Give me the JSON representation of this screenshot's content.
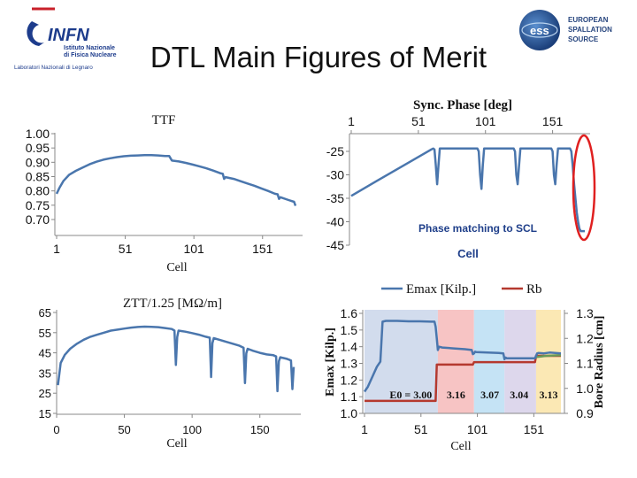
{
  "slide": {
    "title": "DTL Main Figures of Merit",
    "logo_left": {
      "name": "INFN",
      "line1": "Istituto Nazionale",
      "line2": "di Fisica Nucleare",
      "line3": "Laboratori Nazionali di Legnaro"
    },
    "logo_right": {
      "line1": "EUROPEAN",
      "line2": "SPALLATION",
      "line3": "SOURCE"
    }
  },
  "colors": {
    "series_blue": "#4a76ad",
    "series_red": "#b5392f",
    "series_green": "#6a9a57",
    "highlight_red": "#e02020",
    "annotation_blue": "#1f3f8a",
    "band_blue": "#d2dced",
    "band_pink": "#f7c4c4",
    "band_cyan": "#c5e3f5",
    "band_lavender": "#ddd7ec",
    "band_yellow": "#fbe8b4"
  },
  "chart_data": [
    {
      "id": "ttf",
      "type": "line",
      "title": "TTF",
      "xlabel": "Cell",
      "ylabel": "",
      "xlim": [
        1,
        175
      ],
      "ylim": [
        0.7,
        1.0
      ],
      "xticks": [
        "1",
        "51",
        "101",
        "151"
      ],
      "yticks": [
        "1.00",
        "0.95",
        "0.90",
        "0.85",
        "0.80",
        "0.75",
        "0.70"
      ],
      "series": [
        {
          "x": [
            1,
            3,
            6,
            10,
            15,
            20,
            25,
            30,
            35,
            40,
            45,
            50,
            55,
            60,
            65,
            70,
            75,
            80,
            83,
            85,
            90,
            95,
            100,
            105,
            110,
            115,
            120,
            122,
            123,
            124,
            130,
            135,
            140,
            145,
            150,
            155,
            160,
            162,
            163,
            164,
            170,
            174,
            175
          ],
          "y": [
            0.79,
            0.81,
            0.835,
            0.856,
            0.87,
            0.882,
            0.893,
            0.902,
            0.909,
            0.914,
            0.918,
            0.921,
            0.923,
            0.924,
            0.925,
            0.925,
            0.924,
            0.922,
            0.922,
            0.906,
            0.903,
            0.898,
            0.892,
            0.886,
            0.879,
            0.871,
            0.862,
            0.86,
            0.842,
            0.848,
            0.842,
            0.834,
            0.826,
            0.818,
            0.809,
            0.8,
            0.79,
            0.788,
            0.772,
            0.778,
            0.768,
            0.762,
            0.748
          ]
        }
      ]
    },
    {
      "id": "sync-phase",
      "type": "line",
      "title": "Sync. Phase [deg]",
      "xlabel": "Cell",
      "ylabel": "",
      "xlim": [
        1,
        175
      ],
      "ylim": [
        -45,
        -20
      ],
      "xticks": [
        "1",
        "51",
        "101",
        "151"
      ],
      "yticks": [
        "-25",
        "-30",
        "-35",
        "-40",
        "-45"
      ],
      "annotation": "Phase matching to SCL",
      "series": [
        {
          "x": [
            1,
            20,
            40,
            60,
            62,
            63,
            64,
            65,
            66,
            67,
            95,
            96,
            97,
            98,
            99,
            100,
            122,
            123,
            124,
            125,
            126,
            127,
            150,
            151,
            152,
            153,
            154,
            155,
            164,
            165,
            166,
            167,
            168,
            169,
            170,
            171,
            172,
            173,
            175
          ],
          "y": [
            -34.5,
            -31.3,
            -28.0,
            -24.7,
            -24.4,
            -24.6,
            -28,
            -32,
            -28,
            -24.4,
            -24.4,
            -25,
            -30,
            -33,
            -28,
            -24.4,
            -24.4,
            -25,
            -30,
            -32,
            -28,
            -24.4,
            -24.4,
            -25,
            -30,
            -32,
            -28,
            -24.4,
            -24.4,
            -25,
            -28,
            -32,
            -35,
            -38,
            -40,
            -41.5,
            -42,
            -42,
            -42
          ]
        }
      ]
    },
    {
      "id": "ztt",
      "type": "line",
      "title": "ZTT/1.25 [MΩ/m]",
      "xlabel": "Cell",
      "ylabel": "",
      "xlim": [
        0,
        175
      ],
      "ylim": [
        15,
        65
      ],
      "xticks": [
        "0",
        "50",
        "100",
        "150"
      ],
      "yticks": [
        "65",
        "55",
        "45",
        "35",
        "25",
        "15"
      ],
      "series": [
        {
          "x": [
            1,
            3,
            6,
            10,
            15,
            20,
            25,
            30,
            35,
            40,
            45,
            50,
            55,
            60,
            65,
            70,
            75,
            80,
            85,
            87,
            88,
            89,
            90,
            92,
            95,
            100,
            105,
            110,
            113,
            114,
            115,
            116,
            120,
            125,
            130,
            135,
            138,
            139,
            140,
            141,
            145,
            150,
            155,
            160,
            162,
            163,
            164,
            165,
            170,
            172,
            173,
            174,
            175
          ],
          "y": [
            29,
            40,
            44,
            47,
            49.5,
            51.5,
            53,
            54,
            55,
            56,
            56.5,
            57,
            57.5,
            57.8,
            58,
            57.9,
            57.7,
            57.3,
            56.8,
            56,
            39,
            52.8,
            56,
            55.8,
            55.5,
            54.8,
            54,
            53,
            52.5,
            33,
            49.8,
            52.3,
            51.5,
            50.5,
            49.5,
            48.5,
            47.5,
            30,
            44.8,
            47,
            46,
            45,
            44.2,
            43.8,
            43.2,
            26,
            40.8,
            42.8,
            42,
            41.5,
            41.2,
            27,
            38
          ]
        }
      ]
    },
    {
      "id": "emax-rb",
      "type": "line",
      "title": "",
      "xlabel": "Cell",
      "ylabel": "Emax [Kilp.]",
      "y2label": "Bore Radius [cm]",
      "xlim": [
        1,
        175
      ],
      "ylim": [
        1.0,
        1.6
      ],
      "y2lim": [
        0.9,
        1.3
      ],
      "xticks": [
        "1",
        "51",
        "101",
        "151"
      ],
      "yticks": [
        "1.6",
        "1.5",
        "1.4",
        "1.3",
        "1.2",
        "1.1",
        "1.0"
      ],
      "y2ticks": [
        "1.3",
        "1.2",
        "1.1",
        "1.0",
        "0.9"
      ],
      "legend": [
        "Emax [Kilp.]",
        "Rb"
      ],
      "legend_position": "top",
      "band_labels": [
        "E0 = 3.00",
        "3.16",
        "3.07",
        "3.04",
        "3.13"
      ],
      "bands": [
        [
          1,
          66
        ],
        [
          66,
          98
        ],
        [
          98,
          125
        ],
        [
          125,
          153
        ],
        [
          153,
          175
        ]
      ],
      "series": [
        {
          "name": "Emax [Kilp.]",
          "color": "blue",
          "x": [
            1,
            4,
            8,
            12,
            15,
            17,
            20,
            30,
            40,
            50,
            60,
            63,
            64,
            65,
            66,
            67,
            70,
            80,
            90,
            96,
            97,
            98,
            99,
            100,
            110,
            120,
            124,
            125,
            126,
            127,
            130,
            140,
            150,
            152,
            153,
            154,
            155,
            160,
            165,
            170,
            175
          ],
          "y": [
            1.13,
            1.16,
            1.22,
            1.28,
            1.31,
            1.55,
            1.555,
            1.555,
            1.552,
            1.552,
            1.55,
            1.55,
            1.52,
            1.45,
            1.38,
            1.4,
            1.395,
            1.39,
            1.385,
            1.38,
            1.355,
            1.36,
            1.37,
            1.368,
            1.365,
            1.362,
            1.36,
            1.325,
            1.335,
            1.33,
            1.33,
            1.33,
            1.33,
            1.33,
            1.345,
            1.36,
            1.362,
            1.36,
            1.365,
            1.362,
            1.36
          ]
        },
        {
          "name": "Rb",
          "color": "red",
          "x": [
            1,
            64,
            65,
            97,
            98,
            152,
            153,
            175
          ],
          "y": [
            0.95,
            0.95,
            1.095,
            1.095,
            1.105,
            1.105,
            1.13,
            1.13
          ]
        },
        {
          "name": "",
          "color": "green",
          "x": [
            153,
            158,
            162,
            166,
            170,
            175
          ],
          "y": [
            1.125,
            1.128,
            1.13,
            1.131,
            1.132,
            1.133
          ]
        }
      ]
    }
  ]
}
